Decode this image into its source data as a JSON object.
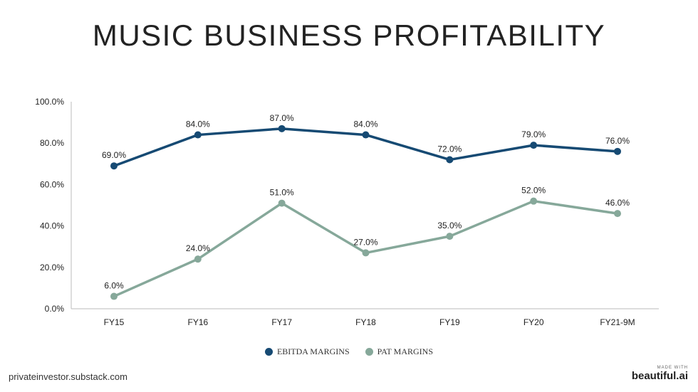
{
  "title": "MUSIC BUSINESS PROFITABILITY",
  "footer_source": "privateinvestor.substack.com",
  "brand": {
    "made_with": "MADE WITH",
    "name": "beautiful.ai"
  },
  "chart_data": {
    "type": "line",
    "categories": [
      "FY15",
      "FY16",
      "FY17",
      "FY18",
      "FY19",
      "FY20",
      "FY21-9M"
    ],
    "ylim": [
      0,
      100
    ],
    "yticks": [
      "0.0%",
      "20.0%",
      "40.0%",
      "60.0%",
      "80.0%",
      "100.0%"
    ],
    "grid": false,
    "legend_position": "bottom",
    "series": [
      {
        "name": "EBITDA MARGINS",
        "color": "#164a73",
        "values": [
          69,
          84,
          87,
          84,
          72,
          79,
          76
        ],
        "labels": [
          "69.0%",
          "84.0%",
          "87.0%",
          "84.0%",
          "72.0%",
          "79.0%",
          "76.0%"
        ]
      },
      {
        "name": "PAT MARGINS",
        "color": "#86a89a",
        "values": [
          6,
          24,
          51,
          27,
          35,
          52,
          46
        ],
        "labels": [
          "6.0%",
          "24.0%",
          "51.0%",
          "27.0%",
          "35.0%",
          "52.0%",
          "46.0%"
        ]
      }
    ]
  }
}
